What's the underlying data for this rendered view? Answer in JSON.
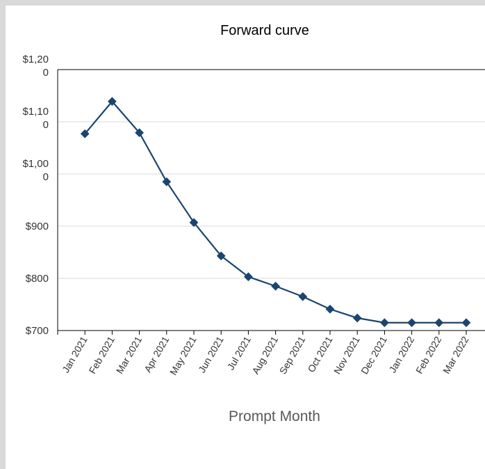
{
  "chart_data": {
    "type": "line",
    "title": "Forward curve",
    "x_label": "Prompt Month",
    "categories": [
      "Jan 2021",
      "Feb 2021",
      "Mar 2021",
      "Apr 2021",
      "May 2021",
      "Jun 2021",
      "Jul 2021",
      "Aug 2021",
      "Sep 2021",
      "Oct 2021",
      "Nov 2021",
      "Dec 2021",
      "Jan 2022",
      "Feb 2022",
      "Mar 2022"
    ],
    "series": [
      {
        "name": "Forward curve",
        "color": "#1b4470",
        "values": [
          1077,
          1139,
          1079,
          985,
          907,
          843,
          803,
          785,
          765,
          741,
          724,
          715,
          715,
          715,
          715
        ]
      }
    ],
    "ylim": [
      700,
      1200
    ],
    "yticks": [
      {
        "value": 700,
        "label": "$700"
      },
      {
        "value": 800,
        "label": "$800"
      },
      {
        "value": 900,
        "label": "$900"
      },
      {
        "value": 1000,
        "label": "$1,000"
      },
      {
        "value": 1100,
        "label": "$1,100"
      },
      {
        "value": 1200,
        "label": "$1,200"
      }
    ],
    "grid": true
  }
}
